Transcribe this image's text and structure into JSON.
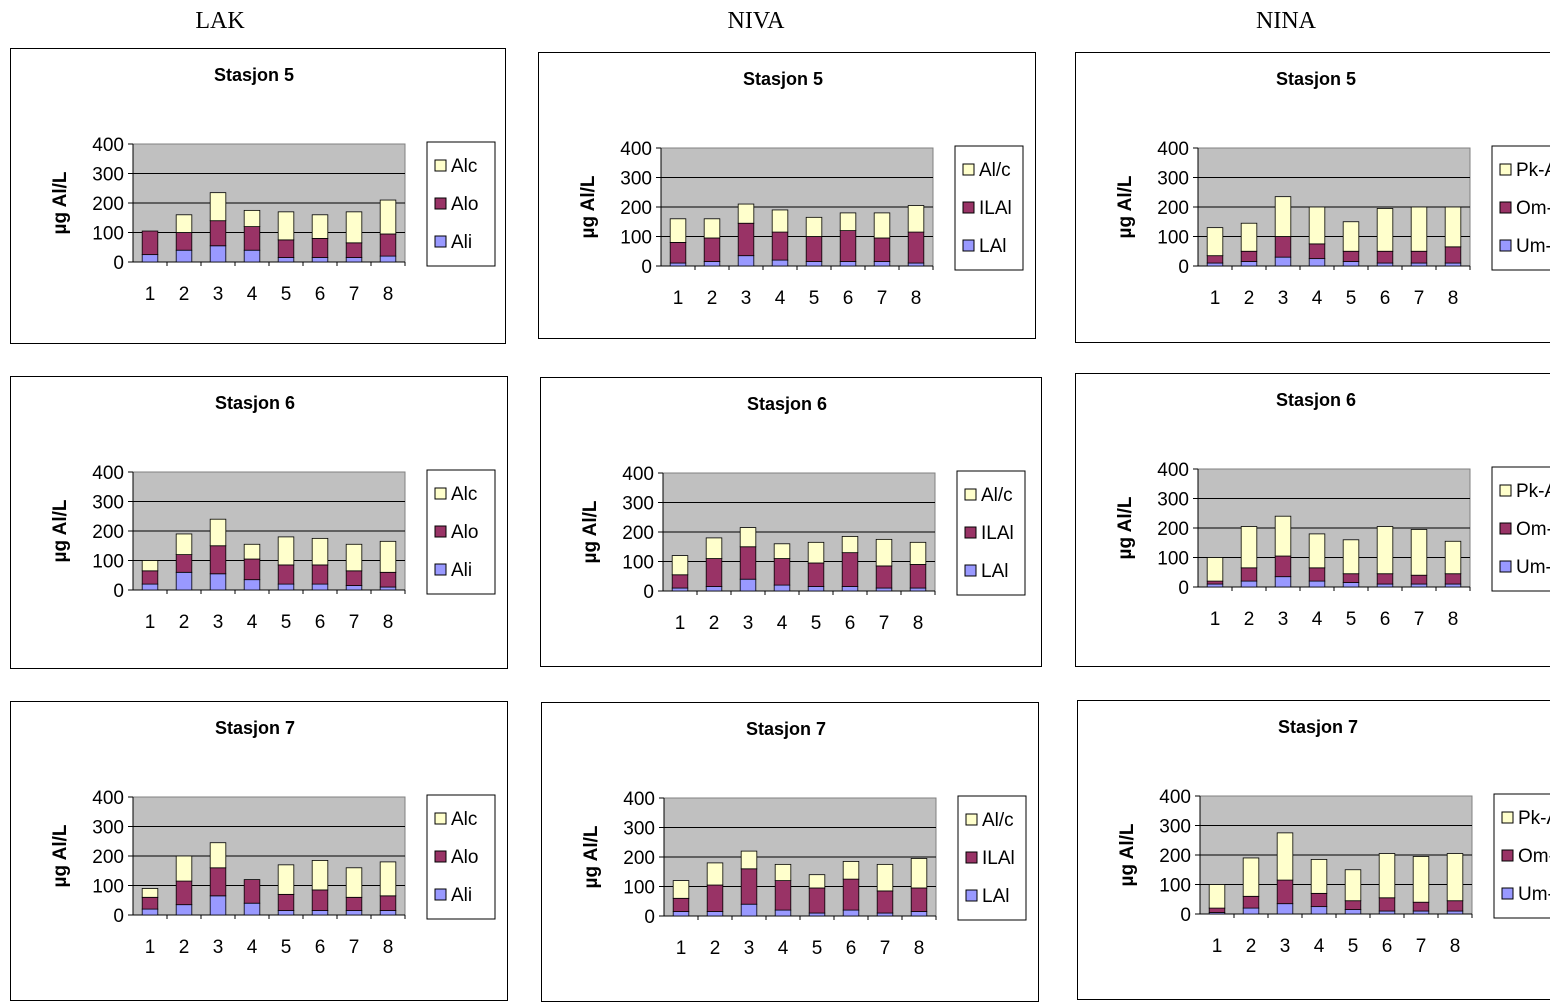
{
  "columns": [
    "LAK",
    "NIVA",
    "NINA"
  ],
  "colors": {
    "bottom": "#9999ff",
    "middle": "#993366",
    "top": "#ffffcc",
    "plot_bg": "#c0c0c0"
  },
  "chart_data": [
    {
      "type": "bar",
      "stacked": true,
      "group": "LAK",
      "title": "Stasjon 5",
      "ylabel": "µg Al/L",
      "ylim": [
        0,
        400
      ],
      "yticks": [
        0,
        100,
        200,
        300,
        400
      ],
      "categories": [
        "1",
        "2",
        "3",
        "4",
        "5",
        "6",
        "7",
        "8"
      ],
      "series": [
        {
          "name": "Ali",
          "values": [
            25,
            40,
            55,
            40,
            15,
            15,
            15,
            20
          ]
        },
        {
          "name": "Alo",
          "values": [
            80,
            60,
            85,
            80,
            60,
            65,
            50,
            75
          ]
        },
        {
          "name": "Alc",
          "values": [
            0,
            60,
            95,
            55,
            95,
            80,
            105,
            115
          ]
        }
      ],
      "legend_order": [
        "Alc",
        "Alo",
        "Ali"
      ]
    },
    {
      "type": "bar",
      "stacked": true,
      "group": "NIVA",
      "title": "Stasjon 5",
      "ylabel": "µg Al/L",
      "ylim": [
        0,
        400
      ],
      "yticks": [
        0,
        100,
        200,
        300,
        400
      ],
      "categories": [
        "1",
        "2",
        "3",
        "4",
        "5",
        "6",
        "7",
        "8"
      ],
      "series": [
        {
          "name": "LAl",
          "values": [
            10,
            15,
            35,
            20,
            15,
            15,
            15,
            10
          ]
        },
        {
          "name": "ILAl",
          "values": [
            70,
            80,
            110,
            95,
            85,
            105,
            80,
            105
          ]
        },
        {
          "name": "Al/c",
          "values": [
            80,
            65,
            65,
            75,
            65,
            60,
            85,
            90
          ]
        }
      ],
      "legend_order": [
        "Al/c",
        "ILAl",
        "LAl"
      ]
    },
    {
      "type": "bar",
      "stacked": true,
      "group": "NINA",
      "title": "Stasjon 5",
      "ylabel": "µg Al/L",
      "ylim": [
        0,
        400
      ],
      "yticks": [
        0,
        100,
        200,
        300,
        400
      ],
      "categories": [
        "1",
        "2",
        "3",
        "4",
        "5",
        "6",
        "7",
        "8"
      ],
      "series": [
        {
          "name": "Um-Al",
          "values": [
            10,
            15,
            30,
            25,
            15,
            10,
            10,
            10
          ]
        },
        {
          "name": "Om-Al",
          "values": [
            25,
            35,
            70,
            50,
            35,
            40,
            40,
            55
          ]
        },
        {
          "name": "Pk-Al",
          "values": [
            95,
            95,
            135,
            125,
            100,
            145,
            150,
            135
          ]
        }
      ],
      "legend_order": [
        "Pk-Al",
        "Om-Al",
        "Um-Al"
      ]
    },
    {
      "type": "bar",
      "stacked": true,
      "group": "LAK",
      "title": "Stasjon 6",
      "ylabel": "µg Al/L",
      "ylim": [
        0,
        400
      ],
      "yticks": [
        0,
        100,
        200,
        300,
        400
      ],
      "categories": [
        "1",
        "2",
        "3",
        "4",
        "5",
        "6",
        "7",
        "8"
      ],
      "series": [
        {
          "name": "Ali",
          "values": [
            20,
            60,
            55,
            35,
            20,
            20,
            15,
            10
          ]
        },
        {
          "name": "Alo",
          "values": [
            45,
            60,
            95,
            70,
            65,
            65,
            50,
            50
          ]
        },
        {
          "name": "Alc",
          "values": [
            35,
            70,
            90,
            50,
            95,
            90,
            90,
            105
          ]
        }
      ],
      "legend_order": [
        "Alc",
        "Alo",
        "Ali"
      ]
    },
    {
      "type": "bar",
      "stacked": true,
      "group": "NIVA",
      "title": "Stasjon 6",
      "ylabel": "µg Al/L",
      "ylim": [
        0,
        400
      ],
      "yticks": [
        0,
        100,
        200,
        300,
        400
      ],
      "categories": [
        "1",
        "2",
        "3",
        "4",
        "5",
        "6",
        "7",
        "8"
      ],
      "series": [
        {
          "name": "LAl",
          "values": [
            10,
            15,
            40,
            20,
            15,
            15,
            10,
            10
          ]
        },
        {
          "name": "ILAl",
          "values": [
            45,
            95,
            110,
            90,
            80,
            115,
            75,
            80
          ]
        },
        {
          "name": "Al/c",
          "values": [
            65,
            70,
            65,
            50,
            70,
            55,
            90,
            75
          ]
        }
      ],
      "legend_order": [
        "Al/c",
        "ILAl",
        "LAl"
      ]
    },
    {
      "type": "bar",
      "stacked": true,
      "group": "NINA",
      "title": "Stasjon 6",
      "ylabel": "µg Al/L",
      "ylim": [
        0,
        400
      ],
      "yticks": [
        0,
        100,
        200,
        300,
        400
      ],
      "categories": [
        "1",
        "2",
        "3",
        "4",
        "5",
        "6",
        "7",
        "8"
      ],
      "series": [
        {
          "name": "Um-Al",
          "values": [
            10,
            20,
            35,
            20,
            15,
            10,
            10,
            10
          ]
        },
        {
          "name": "Om-Al",
          "values": [
            10,
            45,
            70,
            45,
            30,
            35,
            30,
            35
          ]
        },
        {
          "name": "Pk-Al",
          "values": [
            80,
            140,
            135,
            115,
            115,
            160,
            155,
            110
          ]
        }
      ],
      "legend_order": [
        "Pk-Al",
        "Om-Al",
        "Um-Al"
      ]
    },
    {
      "type": "bar",
      "stacked": true,
      "group": "LAK",
      "title": "Stasjon 7",
      "ylabel": "µg Al/L",
      "ylim": [
        0,
        400
      ],
      "yticks": [
        0,
        100,
        200,
        300,
        400
      ],
      "categories": [
        "1",
        "2",
        "3",
        "4",
        "5",
        "6",
        "7",
        "8"
      ],
      "series": [
        {
          "name": "Ali",
          "values": [
            20,
            35,
            65,
            40,
            15,
            15,
            15,
            15
          ]
        },
        {
          "name": "Alo",
          "values": [
            40,
            80,
            95,
            80,
            55,
            70,
            45,
            50
          ]
        },
        {
          "name": "Alc",
          "values": [
            30,
            85,
            85,
            0,
            100,
            100,
            100,
            115
          ]
        }
      ],
      "legend_order": [
        "Alc",
        "Alo",
        "Ali"
      ]
    },
    {
      "type": "bar",
      "stacked": true,
      "group": "NIVA",
      "title": "Stasjon 7",
      "ylabel": "µg Al/L",
      "ylim": [
        0,
        400
      ],
      "yticks": [
        0,
        100,
        200,
        300,
        400
      ],
      "categories": [
        "1",
        "2",
        "3",
        "4",
        "5",
        "6",
        "7",
        "8"
      ],
      "series": [
        {
          "name": "LAl",
          "values": [
            15,
            15,
            40,
            20,
            10,
            20,
            10,
            15
          ]
        },
        {
          "name": "ILAl",
          "values": [
            45,
            90,
            120,
            100,
            85,
            105,
            75,
            80
          ]
        },
        {
          "name": "Al/c",
          "values": [
            60,
            75,
            60,
            55,
            45,
            60,
            90,
            100
          ]
        }
      ],
      "legend_order": [
        "Al/c",
        "ILAl",
        "LAl"
      ]
    },
    {
      "type": "bar",
      "stacked": true,
      "group": "NINA",
      "title": "Stasjon 7",
      "ylabel": "µg Al/L",
      "ylim": [
        0,
        400
      ],
      "yticks": [
        0,
        100,
        200,
        300,
        400
      ],
      "categories": [
        "1",
        "2",
        "3",
        "4",
        "5",
        "6",
        "7",
        "8"
      ],
      "series": [
        {
          "name": "Um-Al",
          "values": [
            5,
            20,
            35,
            25,
            15,
            10,
            10,
            10
          ]
        },
        {
          "name": "Om-Al",
          "values": [
            15,
            40,
            80,
            45,
            30,
            45,
            30,
            35
          ]
        },
        {
          "name": "Pk-Al",
          "values": [
            80,
            130,
            160,
            115,
            105,
            150,
            155,
            160
          ]
        }
      ],
      "legend_order": [
        "Pk-Al",
        "Om-Al",
        "Um-Al"
      ]
    }
  ]
}
